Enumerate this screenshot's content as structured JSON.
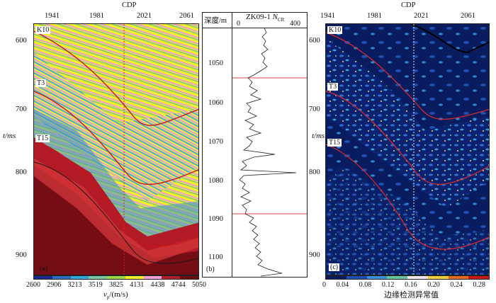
{
  "panel_a": {
    "top_axis_title": "CDP",
    "top_ticks": [
      "1941",
      "1981",
      "2021",
      "2061"
    ],
    "left_axis_title": "t/ms",
    "left_ticks": [
      "600",
      "700",
      "800",
      "900"
    ],
    "horizon_labels": [
      "K10",
      "T3",
      "T15"
    ],
    "panel_label": "(a)",
    "colorbar_ticks": [
      "2600",
      "2906",
      "3213",
      "3519",
      "3825",
      "4131",
      "4438",
      "4744",
      "5050"
    ],
    "colorbar_title": "vp/(m/s)",
    "colorbar_title_main": "v",
    "colorbar_title_sub": "p",
    "colorbar_title_rest": "/(m/s)",
    "colorbar_colors": [
      "#1a2a8c",
      "#2f6cc0",
      "#2fa8d8",
      "#7ac6a0",
      "#9ad84a",
      "#f3f02a",
      "#f2a0d8",
      "#b41c2c",
      "#6a0c10"
    ]
  },
  "panel_b": {
    "header_depth": "深度/m",
    "header_well": "ZK09-1",
    "header_ncr": "NCR",
    "header_ncr_main": "N",
    "header_ncr_sub": "CR",
    "scale_min": "0",
    "scale_max": "400",
    "depth_ticks": [
      "1050",
      "1060",
      "1070",
      "1080",
      "1090",
      "1100"
    ],
    "panel_label": "(b)"
  },
  "panel_c": {
    "top_axis_title": "CDP",
    "top_ticks": [
      "1941",
      "1981",
      "2021",
      "2061"
    ],
    "left_axis_title": "t/ms",
    "left_ticks": [
      "600",
      "700",
      "800",
      "900"
    ],
    "horizon_labels": [
      "K10",
      "T3",
      "T15"
    ],
    "panel_label": "(c)",
    "colorbar_ticks": [
      "0",
      "0.04",
      "0.08",
      "0.12",
      "0.16",
      "0.20",
      "0.24",
      "0.28"
    ],
    "colorbar_title": "边缘检测异常值",
    "colorbar_colors": [
      "#0a1a5a",
      "#1f4fb0",
      "#3a90d8",
      "#6ac4a0",
      "#f0e8e8",
      "#f0d040",
      "#e86a20",
      "#c81818"
    ]
  }
}
